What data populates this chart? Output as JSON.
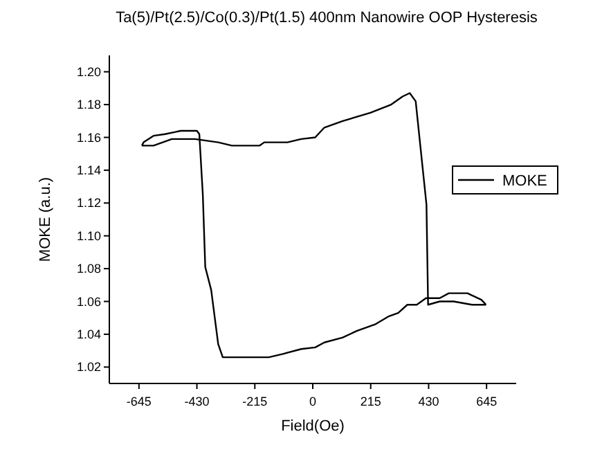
{
  "chart_data": {
    "type": "line",
    "title": "Ta(5)/Pt(2.5)/Co(0.3)/Pt(1.5) 400nm Nanowire OOP Hysteresis",
    "xlabel": "Field(Oe)",
    "ylabel": "MOKE (a.u.)",
    "xlim": [
      -755,
      755
    ],
    "xticks": [
      -645,
      -430,
      -215,
      0,
      215,
      430,
      645
    ],
    "ylim": [
      1.01,
      1.21
    ],
    "yticks": [
      1.02,
      1.04,
      1.06,
      1.08,
      {
        "value": 1.1,
        "label": "1.10"
      },
      1.12,
      1.14,
      1.16,
      1.18,
      {
        "value": 1.2,
        "label": "1.20"
      }
    ],
    "grid": false,
    "legend": "right",
    "marker": "none",
    "line_style": "solid",
    "series": [
      {
        "name": "MOKE",
        "color": "#000000",
        "x": [
          643,
          626,
          574,
          505,
          471,
          420,
          386,
          351,
          317,
          283,
          231,
          163,
          111,
          43,
          9,
          -43,
          -111,
          -163,
          -248,
          -334,
          -351,
          -377,
          -399,
          -408,
          -421,
          -430,
          -490,
          -548,
          -591,
          -628,
          -634
        ],
        "values": [
          1.058,
          1.061,
          1.065,
          1.065,
          1.062,
          1.062,
          1.058,
          1.058,
          1.053,
          1.051,
          1.046,
          1.042,
          1.038,
          1.035,
          1.032,
          1.031,
          1.028,
          1.026,
          1.026,
          1.026,
          1.034,
          1.067,
          1.081,
          1.125,
          1.162,
          1.164,
          1.164,
          1.162,
          1.161,
          1.157,
          1.155
        ]
      },
      {
        "color": "#000000",
        "x": [
          -634,
          -591,
          -523,
          -437,
          -351,
          -300,
          -197,
          -180,
          -94,
          -43,
          9,
          43,
          111,
          214,
          291,
          334,
          360,
          382,
          422,
          428,
          471,
          523,
          591,
          643
        ],
        "values": [
          1.155,
          1.155,
          1.159,
          1.159,
          1.157,
          1.155,
          1.155,
          1.157,
          1.157,
          1.159,
          1.16,
          1.166,
          1.17,
          1.175,
          1.18,
          1.185,
          1.187,
          1.182,
          1.119,
          1.058,
          1.06,
          1.06,
          1.058,
          1.058
        ]
      }
    ]
  }
}
